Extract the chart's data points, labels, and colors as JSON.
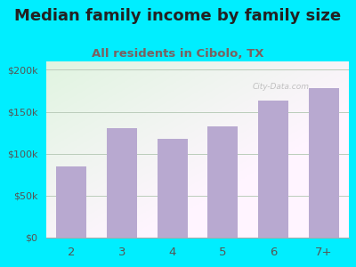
{
  "title": "Median family income by family size",
  "subtitle": "All residents in Cibolo, TX",
  "categories": [
    "2",
    "3",
    "4",
    "5",
    "6",
    "7+"
  ],
  "values": [
    85000,
    130000,
    118000,
    133000,
    163000,
    178000
  ],
  "bar_color": "#b8a9d0",
  "title_fontsize": 13,
  "subtitle_fontsize": 9.5,
  "title_color": "#222222",
  "subtitle_color": "#7a6060",
  "tick_label_color": "#555555",
  "background_outer": "#00eeff",
  "ylim": [
    0,
    210000
  ],
  "yticks": [
    0,
    50000,
    100000,
    150000,
    200000
  ],
  "ytick_labels": [
    "$0",
    "$50k",
    "$100k",
    "$150k",
    "$200k"
  ],
  "grid_color": "#bbccbb",
  "watermark": "City-Data.com"
}
